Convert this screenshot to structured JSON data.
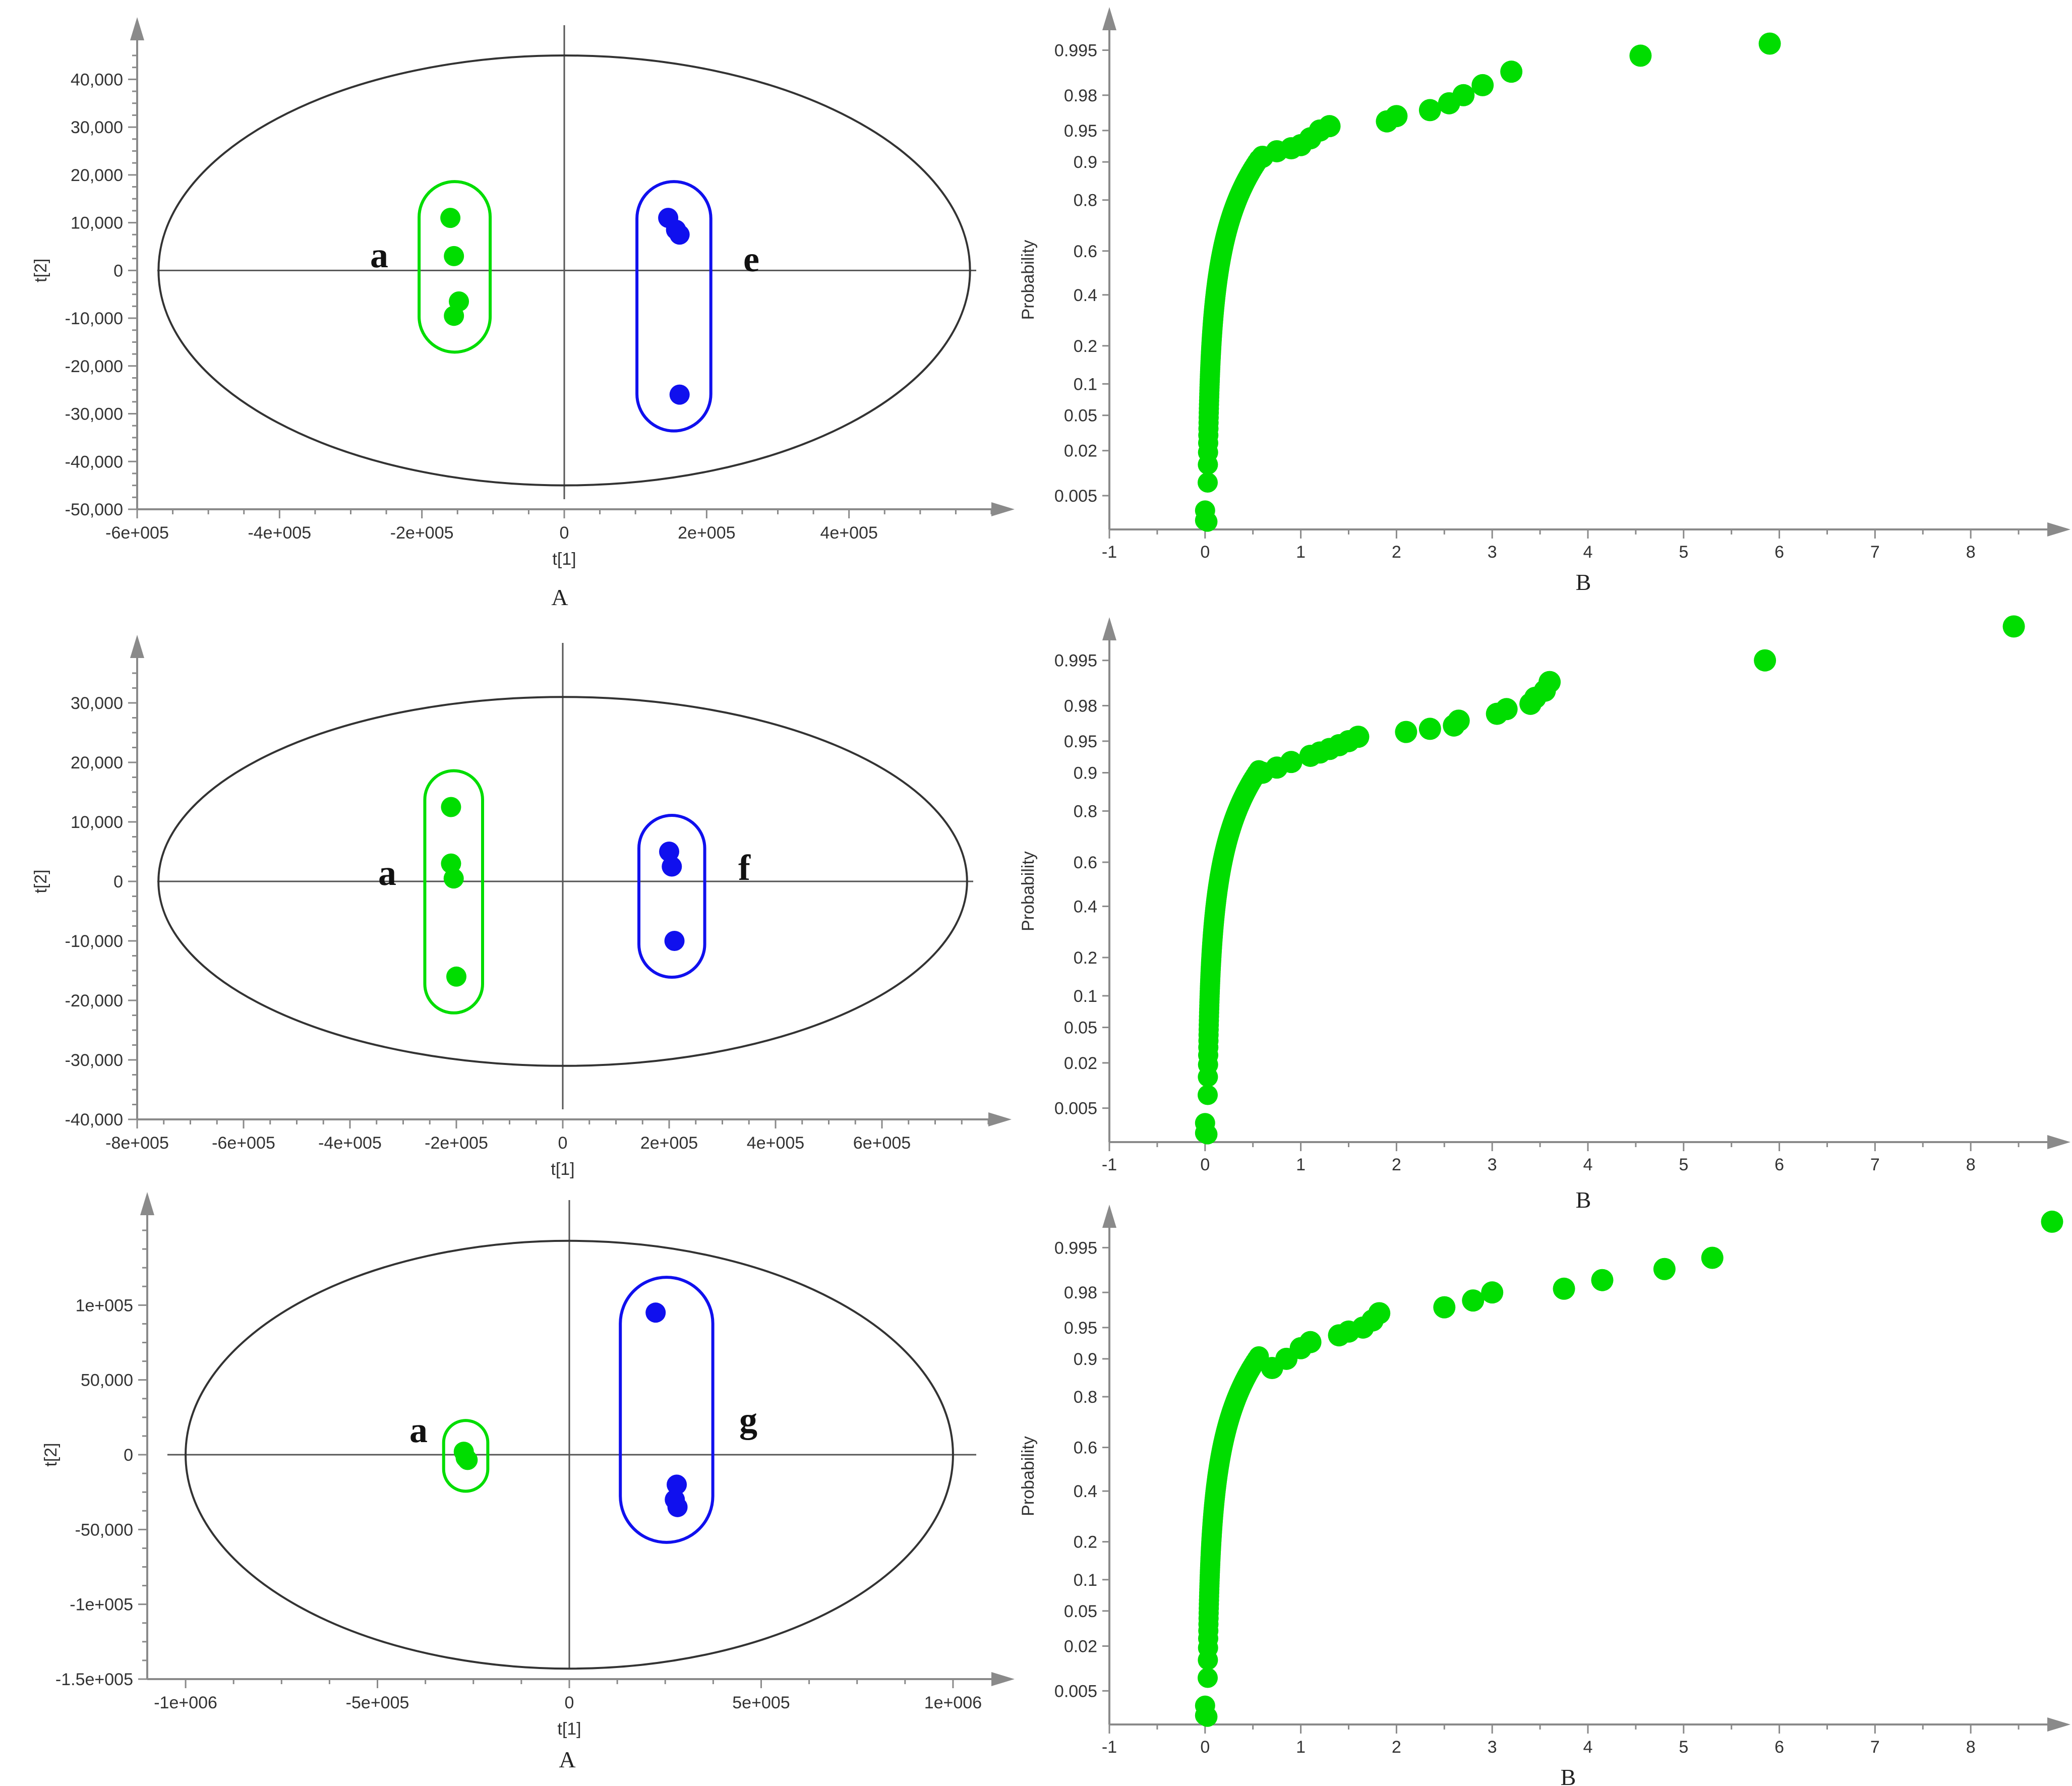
{
  "colors": {
    "green": "#00dd00",
    "blue": "#1010ee",
    "axis": "#8a8a8a",
    "ellipse": "#333333"
  },
  "chart_data": [
    {
      "type": "scatter",
      "id": "A1",
      "panel_label": "A",
      "xlabel": "t[1]",
      "ylabel": "t[2]",
      "xlim": [
        -600000,
        600000
      ],
      "ylim": [
        -50000,
        45000
      ],
      "xticks": [
        -600000,
        -400000,
        -200000,
        0,
        200000,
        400000
      ],
      "xtick_labels": [
        "-6e+005",
        "-4e+005",
        "-2e+005",
        "0",
        "2e+005",
        "4e+005"
      ],
      "yticks": [
        40000,
        30000,
        20000,
        10000,
        0,
        -10000,
        -20000,
        -30000,
        -40000,
        -50000
      ],
      "ytick_labels": [
        "40,000",
        "30,000",
        "20,000",
        "10,000",
        "0",
        "-10,000",
        "-20,000",
        "-30,000",
        "-40,000",
        "-50,000"
      ],
      "ellipse": {
        "rx": 570000,
        "ry": 45000
      },
      "groups": [
        {
          "label": "a",
          "color": "green",
          "x": [
            -160000,
            -155000,
            -148000,
            -155000
          ],
          "y": [
            11000,
            3000,
            -6500,
            -9500
          ]
        },
        {
          "label": "e",
          "color": "blue",
          "x": [
            146000,
            157000,
            162000,
            162000
          ],
          "y": [
            11000,
            8500,
            7500,
            -26000
          ]
        }
      ]
    },
    {
      "type": "scatter",
      "id": "B1",
      "panel_label": "B",
      "xlabel": "",
      "ylabel": "Probability",
      "xlim": [
        -1,
        8.8
      ],
      "xticks": [
        -1,
        0,
        1,
        2,
        3,
        4,
        5,
        6,
        7,
        8
      ],
      "xtick_labels": [
        "-1",
        "0",
        "1",
        "2",
        "3",
        "4",
        "5",
        "6",
        "7",
        "8"
      ],
      "yticks": [
        0.995,
        0.98,
        0.95,
        0.9,
        0.8,
        0.6,
        0.4,
        0.2,
        0.1,
        0.05,
        0.02,
        0.005
      ],
      "ytick_labels": [
        "0.995",
        "0.98",
        "0.95",
        "0.9",
        "0.8",
        "0.6",
        "0.4",
        "0.2",
        "0.1",
        "0.05",
        "0.02",
        "0.005"
      ],
      "plim": [
        0.0015,
        0.9975
      ],
      "outliers_x": [
        0.6,
        0.75,
        0.9,
        1.0,
        1.1,
        1.2,
        1.3,
        1.9,
        2.0,
        2.35,
        2.55,
        2.7,
        2.9,
        3.2,
        4.55,
        5.9
      ],
      "outliers_p": [
        0.91,
        0.92,
        0.925,
        0.93,
        0.94,
        0.95,
        0.955,
        0.96,
        0.965,
        0.97,
        0.975,
        0.98,
        0.985,
        0.99,
        0.994,
        0.996
      ]
    },
    {
      "type": "scatter",
      "id": "A2",
      "panel_label": "",
      "xlabel": "t[1]",
      "ylabel": "t[2]",
      "xlim": [
        -800000,
        800000
      ],
      "ylim": [
        -40000,
        35000
      ],
      "xticks": [
        -800000,
        -600000,
        -400000,
        -200000,
        0,
        200000,
        400000,
        600000
      ],
      "xtick_labels": [
        "-8e+005",
        "-6e+005",
        "-4e+005",
        "-2e+005",
        "0",
        "2e+005",
        "4e+005",
        "6e+005"
      ],
      "yticks": [
        30000,
        20000,
        10000,
        0,
        -10000,
        -20000,
        -30000,
        -40000
      ],
      "ytick_labels": [
        "30,000",
        "20,000",
        "10,000",
        "0",
        "-10,000",
        "-20,000",
        "-30,000",
        "-40,000"
      ],
      "ellipse": {
        "rx": 760000,
        "ry": 31000
      },
      "groups": [
        {
          "label": "a",
          "color": "green",
          "x": [
            -210000,
            -210000,
            -205000,
            -200000
          ],
          "y": [
            12500,
            3000,
            500,
            -16000
          ]
        },
        {
          "label": "f",
          "color": "blue",
          "x": [
            200000,
            205000,
            210000
          ],
          "y": [
            5000,
            2500,
            -10000
          ]
        }
      ]
    },
    {
      "type": "scatter",
      "id": "B2",
      "panel_label": "",
      "xlabel": "",
      "ylabel": "Probability",
      "xlim": [
        -1,
        8.8
      ],
      "xticks": [
        -1,
        0,
        1,
        2,
        3,
        4,
        5,
        6,
        7,
        8
      ],
      "xtick_labels": [
        "-1",
        "0",
        "1",
        "2",
        "3",
        "4",
        "5",
        "6",
        "7",
        "8"
      ],
      "yticks": [
        0.995,
        0.98,
        0.95,
        0.9,
        0.8,
        0.6,
        0.4,
        0.2,
        0.1,
        0.05,
        0.02,
        0.005
      ],
      "ytick_labels": [
        "0.995",
        "0.98",
        "0.95",
        "0.9",
        "0.8",
        "0.6",
        "0.4",
        "0.2",
        "0.1",
        "0.05",
        "0.02",
        "0.005"
      ],
      "plim": [
        0.0015,
        0.9975
      ],
      "outliers_x": [
        0.6,
        0.75,
        0.9,
        1.1,
        1.2,
        1.3,
        1.4,
        1.5,
        1.6,
        2.1,
        2.35,
        2.6,
        2.65,
        3.05,
        3.15,
        3.4,
        3.45,
        3.55,
        3.6,
        5.85,
        8.45
      ],
      "outliers_p": [
        0.9,
        0.91,
        0.92,
        0.93,
        0.935,
        0.94,
        0.945,
        0.95,
        0.955,
        0.96,
        0.963,
        0.966,
        0.97,
        0.975,
        0.978,
        0.981,
        0.984,
        0.987,
        0.99,
        0.995,
        0.9985
      ]
    },
    {
      "type": "scatter",
      "id": "A3",
      "panel_label": "A",
      "xlabel": "t[1]",
      "ylabel": "t[2]",
      "xlim": [
        -1100000,
        1100000
      ],
      "ylim": [
        -150000,
        150000
      ],
      "xticks": [
        -1000000,
        -500000,
        0,
        500000,
        1000000
      ],
      "xtick_labels": [
        "-1e+006",
        "-5e+005",
        "0",
        "5e+005",
        "1e+006"
      ],
      "yticks": [
        100000,
        50000,
        0,
        -50000,
        -100000,
        -150000
      ],
      "ytick_labels": [
        "1e+005",
        "50,000",
        "0",
        "-50,000",
        "-1e+005",
        "-1.5e+005"
      ],
      "ellipse": {
        "rx": 1000000,
        "ry": 143000
      },
      "groups": [
        {
          "label": "a",
          "color": "green",
          "x": [
            -275000,
            -270000,
            -265000
          ],
          "y": [
            2000,
            -2000,
            -3500
          ]
        },
        {
          "label": "g",
          "color": "blue",
          "x": [
            225000,
            280000,
            275000,
            282000
          ],
          "y": [
            95000,
            -20000,
            -30000,
            -35000
          ]
        }
      ]
    },
    {
      "type": "scatter",
      "id": "B3",
      "panel_label": "B",
      "xlabel": "",
      "ylabel": "Probability",
      "xlim": [
        -1,
        8.8
      ],
      "xticks": [
        -1,
        0,
        1,
        2,
        3,
        4,
        5,
        6,
        7,
        8
      ],
      "xtick_labels": [
        "-1",
        "0",
        "1",
        "2",
        "3",
        "4",
        "5",
        "6",
        "7",
        "8"
      ],
      "yticks": [
        0.995,
        0.98,
        0.95,
        0.9,
        0.8,
        0.6,
        0.4,
        0.2,
        0.1,
        0.05,
        0.02,
        0.005
      ],
      "ytick_labels": [
        "0.995",
        "0.98",
        "0.95",
        "0.9",
        "0.8",
        "0.6",
        "0.4",
        "0.2",
        "0.1",
        "0.05",
        "0.02",
        "0.005"
      ],
      "plim": [
        0.0015,
        0.9975
      ],
      "outliers_x": [
        0.7,
        0.85,
        1.0,
        1.1,
        1.4,
        1.5,
        1.65,
        1.75,
        1.82,
        2.5,
        2.8,
        3.0,
        3.75,
        4.15,
        4.8,
        5.3,
        8.85
      ],
      "outliers_p": [
        0.88,
        0.9,
        0.92,
        0.93,
        0.94,
        0.945,
        0.95,
        0.958,
        0.965,
        0.97,
        0.975,
        0.98,
        0.982,
        0.986,
        0.99,
        0.993,
        0.998
      ]
    }
  ]
}
